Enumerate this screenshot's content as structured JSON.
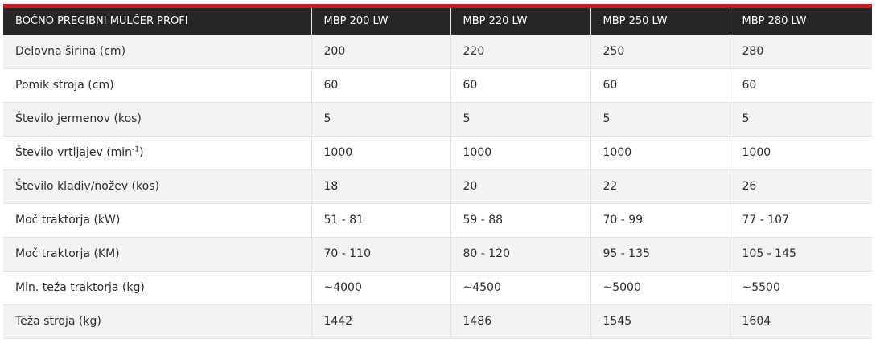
{
  "colors": {
    "accent": "#cc1a22",
    "header_bg": "#262626",
    "row_alt_bg": "#f3f3f3"
  },
  "table": {
    "headers": [
      "BOČNO PREGIBNI MULČER PROFI",
      "MBP 200 LW",
      "MBP 220 LW",
      "MBP 250 LW",
      "MBP 280 LW"
    ],
    "rows": [
      {
        "label": "Delovna širina (cm)",
        "values": [
          "200",
          "220",
          "250",
          "280"
        ]
      },
      {
        "label": "Pomik stroja (cm)",
        "values": [
          "60",
          "60",
          "60",
          "60"
        ]
      },
      {
        "label": "Število jermenov (kos)",
        "values": [
          "5",
          "5",
          "5",
          "5"
        ]
      },
      {
        "label": "Število vrtljajev (min",
        "label_sup": "-1",
        "label_suffix": ")",
        "values": [
          "1000",
          "1000",
          "1000",
          "1000"
        ]
      },
      {
        "label": "Število kladiv/nožev (kos)",
        "values": [
          "18",
          "20",
          "22",
          "26"
        ]
      },
      {
        "label": "Moč traktorja (kW)",
        "values": [
          "51 - 81",
          "59 - 88",
          "70 - 99",
          "77 - 107"
        ]
      },
      {
        "label": "Moč traktorja (KM)",
        "values": [
          "70 - 110",
          "80 - 120",
          "95 - 135",
          "105 - 145"
        ]
      },
      {
        "label": "Min. teža traktorja (kg)",
        "values": [
          "~4000",
          "~4500",
          "~5000",
          "~5500"
        ]
      },
      {
        "label": "Teža stroja (kg)",
        "values": [
          "1442",
          "1486",
          "1545",
          "1604"
        ]
      }
    ]
  }
}
